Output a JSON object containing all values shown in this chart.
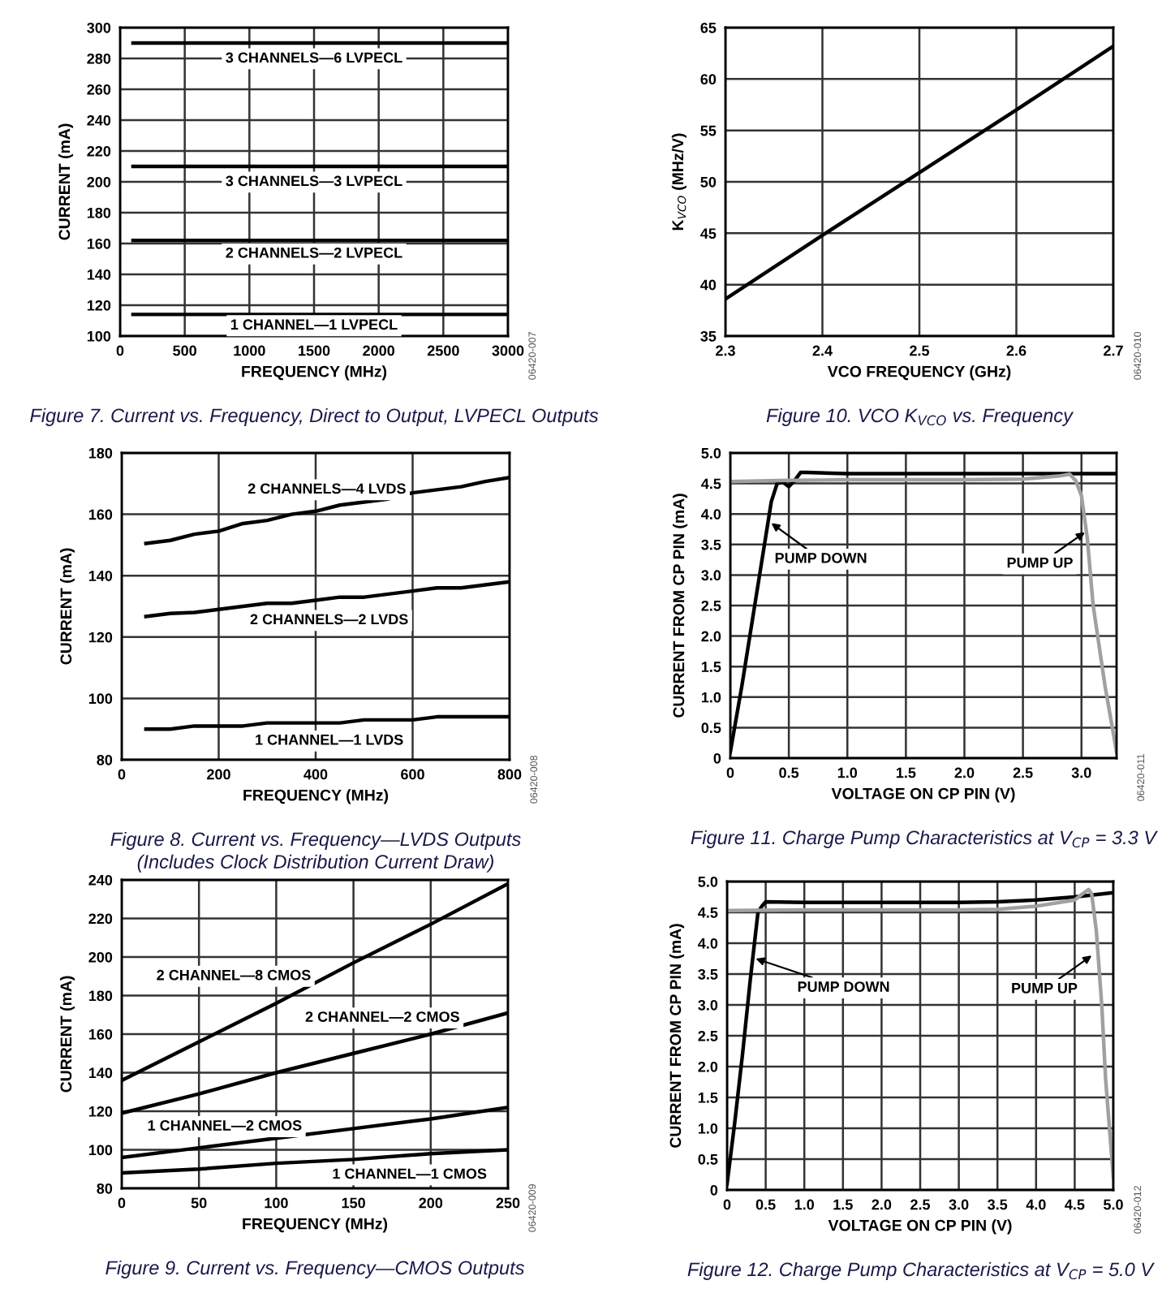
{
  "chart_data": [
    {
      "type": "line",
      "title": "Figure 7. Current vs. Frequency, Direct to Output, LVPECL Outputs",
      "xlabel": "FREQUENCY (MHz)",
      "ylabel": "CURRENT (mA)",
      "xlim": [
        0,
        3000
      ],
      "xticks": [
        0,
        500,
        1000,
        1500,
        2000,
        2500,
        3000
      ],
      "ylim": [
        100,
        300
      ],
      "yticks": [
        100,
        120,
        140,
        160,
        180,
        200,
        220,
        240,
        260,
        280,
        300
      ],
      "grid": true,
      "legend": false,
      "marker": "none",
      "line_style": "solid",
      "x": [
        100,
        3000
      ],
      "series": [
        {
          "name": "3 CHANNELS—6 LVPECL",
          "color": "#000000",
          "values": [
            290,
            290
          ]
        },
        {
          "name": "3 CHANNELS—3 LVPECL",
          "color": "#000000",
          "values": [
            210,
            210
          ]
        },
        {
          "name": "2 CHANNELS—2 LVPECL",
          "color": "#000000",
          "values": [
            162,
            162
          ]
        },
        {
          "name": "1 CHANNEL—1 LVPECL",
          "color": "#000000",
          "values": [
            114,
            114
          ]
        }
      ],
      "annotations": [
        "06420-007"
      ]
    },
    {
      "type": "line",
      "title": "Figure 10. VCO K$_{VCO}$ vs. Frequency",
      "xlabel": "VCO FREQUENCY (GHz)",
      "ylabel": "K$_{VCO}$ (MHz/V)",
      "xlim": [
        2.3,
        2.7
      ],
      "xticks": [
        2.3,
        2.4,
        2.5,
        2.6,
        2.7
      ],
      "ylim": [
        35,
        65
      ],
      "yticks": [
        35,
        40,
        45,
        50,
        55,
        60,
        65
      ],
      "grid": true,
      "legend": false,
      "marker": "none",
      "line_style": "solid",
      "x": [
        2.3,
        2.4,
        2.5,
        2.6,
        2.7
      ],
      "series": [
        {
          "color": "#000000",
          "values": [
            38.6,
            44.8,
            50.9,
            57.0,
            63.2
          ]
        }
      ],
      "annotations": [
        "06420-010"
      ]
    },
    {
      "type": "line",
      "title": "Figure 8. Current vs. Frequency—LVDS Outputs",
      "subtitle": "(Includes Clock Distribution Current Draw)",
      "xlabel": "FREQUENCY (MHz)",
      "ylabel": "CURRENT (mA)",
      "xlim": [
        0,
        800
      ],
      "xticks": [
        0,
        200,
        400,
        600,
        800
      ],
      "ylim": [
        80,
        180
      ],
      "yticks": [
        80,
        100,
        120,
        140,
        160,
        180
      ],
      "grid": true,
      "legend": false,
      "marker": "none",
      "line_style": "solid",
      "x": [
        50,
        100,
        150,
        200,
        250,
        300,
        350,
        400,
        450,
        500,
        550,
        600,
        650,
        700,
        750,
        800
      ],
      "series": [
        {
          "name": "2 CHANNELS—4 LVDS",
          "color": "#000000",
          "values": [
            150.5,
            151.5,
            153.5,
            154.5,
            157,
            158,
            160,
            161,
            163,
            164,
            165,
            167,
            168,
            169,
            170.7,
            172
          ]
        },
        {
          "name": "2 CHANNELS—2 LVDS",
          "color": "#000000",
          "values": [
            126.7,
            127.7,
            128,
            129,
            130,
            131,
            131,
            132,
            133,
            133,
            134,
            135,
            136,
            136,
            137,
            138
          ]
        },
        {
          "name": "1 CHANNEL—1 LVDS",
          "color": "#000000",
          "values": [
            90,
            90,
            91,
            91,
            91,
            92,
            92,
            92,
            92,
            93,
            93,
            93,
            94,
            94,
            94,
            94
          ]
        }
      ],
      "annotations": [
        "06420-008"
      ]
    },
    {
      "type": "line",
      "title": "Figure 11. Charge Pump Characteristics at V$_{CP}$ = 3.3 V",
      "xlabel": "VOLTAGE ON CP PIN (V)",
      "ylabel": "CURRENT FROM CP PIN (mA)",
      "xlim": [
        0,
        3.3
      ],
      "xticks": [
        0,
        0.5,
        {
          "value": 1,
          "label": "1.0"
        },
        1.5,
        {
          "value": 2,
          "label": "2.0"
        },
        2.5,
        {
          "value": 3,
          "label": "3.0"
        }
      ],
      "ylim": [
        0,
        5
      ],
      "yticks": [
        0,
        0.5,
        {
          "value": 1,
          "label": "1.0"
        },
        1.5,
        {
          "value": 2,
          "label": "2.0"
        },
        2.5,
        {
          "value": 3,
          "label": "3.0"
        },
        3.5,
        {
          "value": 4,
          "label": "4.0"
        },
        4.5,
        {
          "value": 5,
          "label": "5.0"
        }
      ],
      "grid": true,
      "legend": false,
      "marker": "none",
      "line_style": "solid",
      "series": [
        {
          "color": "#000000",
          "x": [
            0,
            0.1,
            0.2,
            0.3,
            0.35,
            0.4,
            0.45,
            0.5,
            0.55,
            0.6,
            0.65,
            1,
            2,
            3,
            3.3
          ],
          "values": [
            0.1,
            1.2,
            2.4,
            3.6,
            4.2,
            4.5,
            4.52,
            4.45,
            4.55,
            4.68,
            4.68,
            4.66,
            4.66,
            4.66,
            4.66
          ]
        },
        {
          "color": "#a0a0a0",
          "x": [
            0,
            0.5,
            1,
            2,
            2.5,
            2.8,
            2.9,
            2.95,
            3.0,
            3.05,
            3.1,
            3.2,
            3.3
          ],
          "values": [
            4.53,
            4.55,
            4.56,
            4.56,
            4.57,
            4.62,
            4.65,
            4.55,
            4.3,
            3.6,
            2.5,
            1.2,
            0.1
          ]
        }
      ],
      "annotations": [
        {
          "text": "PUMP DOWN",
          "x": 0.35,
          "y": 3.85
        },
        {
          "text": "PUMP UP",
          "x": 3.03,
          "y": 3.7
        },
        "06420-011"
      ]
    },
    {
      "type": "line",
      "title": "Figure 9. Current vs. Frequency—CMOS Outputs",
      "xlabel": "FREQUENCY (MHz)",
      "ylabel": "CURRENT (mA)",
      "xlim": [
        0,
        250
      ],
      "xticks": [
        0,
        50,
        100,
        150,
        200,
        250
      ],
      "ylim": [
        80,
        240
      ],
      "yticks": [
        80,
        100,
        120,
        140,
        160,
        180,
        200,
        220,
        240
      ],
      "grid": true,
      "legend": false,
      "marker": "none",
      "line_style": "solid",
      "x": [
        0,
        50,
        100,
        150,
        200,
        250
      ],
      "series": [
        {
          "name": "2 CHANNEL—8 CMOS",
          "color": "#000000",
          "values": [
            136,
            156,
            176,
            197,
            217,
            238
          ]
        },
        {
          "name": "2 CHANNEL—2 CMOS",
          "color": "#000000",
          "values": [
            119,
            129,
            140,
            150,
            160,
            171
          ]
        },
        {
          "name": "1 CHANNEL—2 CMOS",
          "color": "#000000",
          "values": [
            96,
            101,
            106,
            111,
            116,
            122
          ]
        },
        {
          "name": "1 CHANNEL—1 CMOS",
          "color": "#000000",
          "values": [
            88,
            90,
            93,
            95,
            98,
            100
          ]
        }
      ],
      "annotations": [
        "06420-009"
      ]
    },
    {
      "type": "line",
      "title": "Figure 12. Charge Pump Characteristics at V$_{CP}$ = 5.0 V",
      "xlabel": "VOLTAGE ON CP PIN (V)",
      "ylabel": "CURRENT FROM CP PIN (mA)",
      "xlim": [
        0,
        5
      ],
      "xticks": [
        0,
        0.5,
        {
          "value": 1,
          "label": "1.0"
        },
        1.5,
        {
          "value": 2,
          "label": "2.0"
        },
        2.5,
        {
          "value": 3,
          "label": "3.0"
        },
        3.5,
        {
          "value": 4,
          "label": "4.0"
        },
        4.5,
        {
          "value": 5,
          "label": "5.0"
        }
      ],
      "ylim": [
        0,
        5
      ],
      "yticks": [
        0,
        0.5,
        {
          "value": 1,
          "label": "1.0"
        },
        1.5,
        {
          "value": 2,
          "label": "2.0"
        },
        2.5,
        {
          "value": 3,
          "label": "3.0"
        },
        3.5,
        {
          "value": 4,
          "label": "4.0"
        },
        4.5,
        {
          "value": 5,
          "label": "5.0"
        }
      ],
      "grid": true,
      "legend": false,
      "marker": "none",
      "line_style": "solid",
      "series": [
        {
          "color": "#000000",
          "x": [
            0,
            0.1,
            0.2,
            0.3,
            0.4,
            0.45,
            0.5,
            1,
            2,
            3,
            3.5,
            4,
            4.5,
            5
          ],
          "values": [
            0.1,
            1.1,
            2.2,
            3.4,
            4.5,
            4.6,
            4.67,
            4.66,
            4.66,
            4.66,
            4.67,
            4.7,
            4.75,
            4.82
          ]
        },
        {
          "color": "#a0a0a0",
          "x": [
            0,
            1,
            2,
            3,
            3.5,
            4,
            4.5,
            4.6,
            4.68,
            4.72,
            4.78,
            4.85,
            4.9,
            5
          ],
          "values": [
            4.53,
            4.54,
            4.54,
            4.54,
            4.55,
            4.6,
            4.7,
            4.8,
            4.87,
            4.8,
            4.2,
            3.0,
            1.8,
            0.2
          ]
        }
      ],
      "annotations": [
        {
          "text": "PUMP DOWN",
          "x": 0.37,
          "y": 3.75
        },
        {
          "text": "PUMP UP",
          "x": 4.72,
          "y": 3.8
        },
        "06420-012"
      ]
    }
  ]
}
